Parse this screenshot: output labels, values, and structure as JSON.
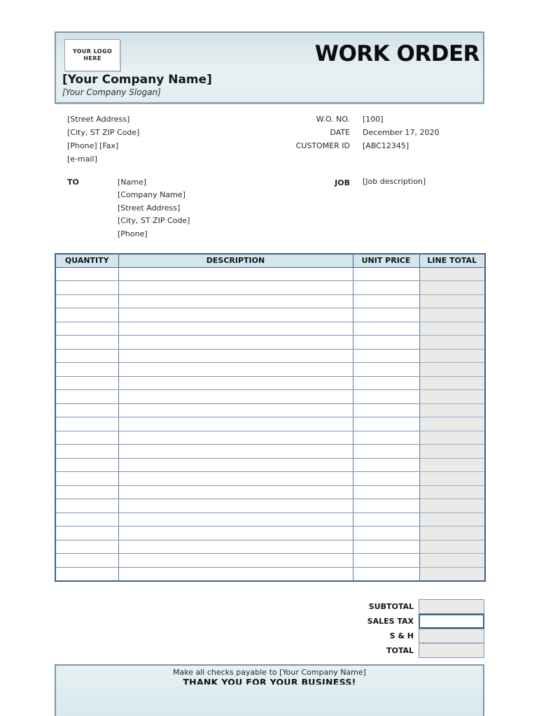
{
  "header": {
    "logo_line1": "YOUR LOGO",
    "logo_line2": "HERE",
    "title": "WORK ORDER",
    "company_name": "[Your Company Name]",
    "company_slogan": "[Your Company Slogan]"
  },
  "company_info": {
    "lines": [
      "[Street Address]",
      "[City, ST  ZIP Code]",
      "[Phone] [Fax]",
      "[e-mail]"
    ]
  },
  "order_info": {
    "rows": [
      {
        "label": "W.O. NO.",
        "value": "[100]"
      },
      {
        "label": "DATE",
        "value": "December 17, 2020"
      },
      {
        "label": "CUSTOMER ID",
        "value": "[ABC12345]"
      }
    ]
  },
  "to_section": {
    "label": "TO",
    "lines": [
      "[Name]",
      "[Company Name]",
      "[Street Address]",
      "[City, ST  ZIP Code]",
      "[Phone]"
    ]
  },
  "job_section": {
    "label": "JOB",
    "value": "[Job description]"
  },
  "table": {
    "columns": [
      "QUANTITY",
      "DESCRIPTION",
      "UNIT PRICE",
      "LINE TOTAL"
    ],
    "empty_row_count": 23
  },
  "totals": {
    "rows": [
      {
        "label": "SUBTOTAL",
        "value": ""
      },
      {
        "label": "SALES TAX",
        "value": ""
      },
      {
        "label": "S & H",
        "value": ""
      },
      {
        "label": "TOTAL",
        "value": ""
      }
    ]
  },
  "footer": {
    "line1": "Make all checks payable to [Your Company Name]",
    "line2": "THANK YOU FOR YOUR BUSINESS!"
  },
  "colors": {
    "table_border": "#41608e",
    "grid_line": "#7d94b2",
    "band_background": "#d9e7ec",
    "table_header_background": "#d5e5ec",
    "line_total_background": "#eaeae8",
    "band_border": "#7c96a6"
  }
}
